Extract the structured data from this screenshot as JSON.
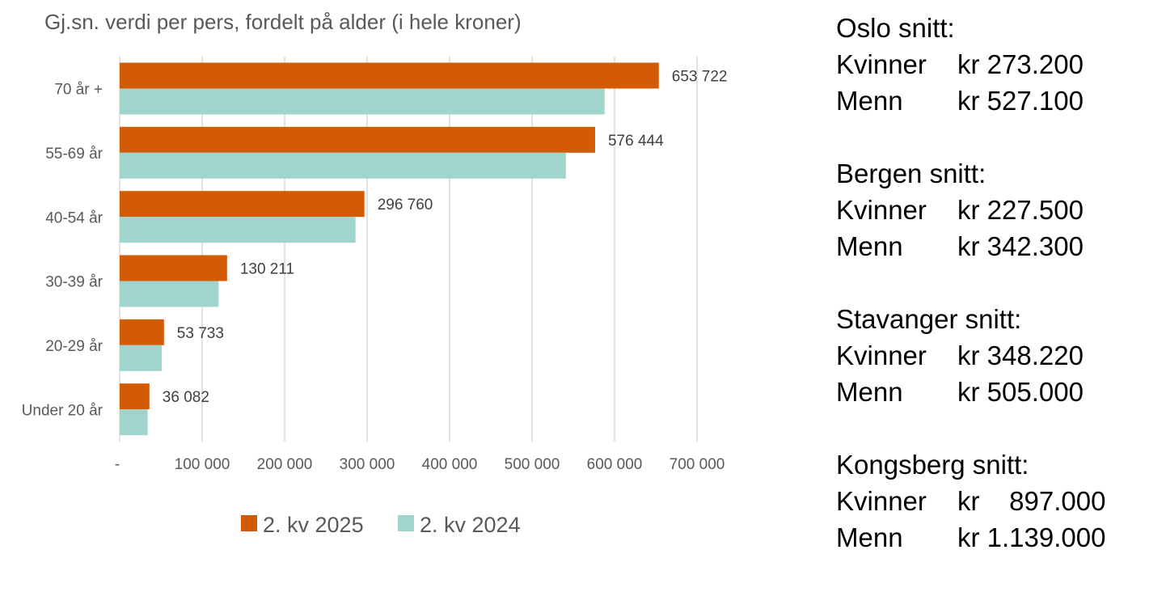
{
  "chart_data": {
    "type": "bar",
    "orientation": "horizontal",
    "title": "Gj.sn. verdi per pers, fordelt på alder (i hele kroner)",
    "categories": [
      "70 år +",
      "55-69 år",
      "40-54 år",
      "30-39 år",
      "20-29 år",
      "Under 20 år"
    ],
    "series": [
      {
        "name": "2. kv 2025",
        "color": "#d35b05",
        "values": [
          653722,
          576444,
          296760,
          130211,
          53733,
          36082
        ],
        "labels": [
          "653 722",
          "576 444",
          "296 760",
          "130 211",
          "53 733",
          "36 082"
        ]
      },
      {
        "name": "2. kv 2024",
        "color": "#a2d4ce",
        "values": [
          588000,
          541000,
          286000,
          120000,
          51000,
          34000
        ]
      }
    ],
    "xlim": [
      0,
      700000
    ],
    "xticks": [
      0,
      100000,
      200000,
      300000,
      400000,
      500000,
      600000,
      700000
    ],
    "xtick_labels": [
      "-",
      "100 000",
      "200 000",
      "300 000",
      "400 000",
      "500 000",
      "600 000",
      "700 000"
    ],
    "grid": true,
    "legend_position": "bottom"
  },
  "summary": [
    {
      "title": "Oslo snitt:",
      "rows": [
        {
          "label": "Kvinner",
          "value": "kr 273.200"
        },
        {
          "label": "Menn",
          "value": "kr 527.100"
        }
      ]
    },
    {
      "title": "Bergen snitt:",
      "rows": [
        {
          "label": "Kvinner",
          "value": "kr 227.500"
        },
        {
          "label": "Menn",
          "value": "kr 342.300"
        }
      ]
    },
    {
      "title": "Stavanger snitt:",
      "rows": [
        {
          "label": "Kvinner",
          "value": "kr 348.220"
        },
        {
          "label": "Menn",
          "value": "kr 505.000"
        }
      ]
    },
    {
      "title": "Kongsberg snitt:",
      "rows": [
        {
          "label": "Kvinner",
          "value": "kr    897.000"
        },
        {
          "label": "Menn",
          "value": "kr 1.139.000"
        }
      ]
    }
  ]
}
